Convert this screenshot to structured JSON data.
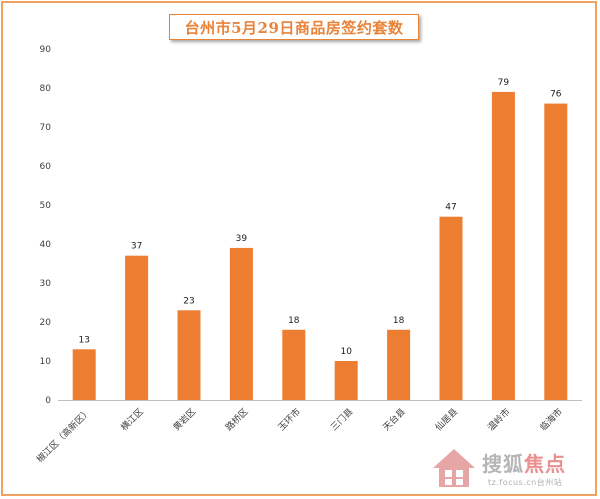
{
  "chart_data": {
    "type": "bar",
    "title": "台州市5月29日商品房签约套数",
    "categories": [
      "椒江区（高新区）",
      "横江区",
      "黄岩区",
      "路桥区",
      "玉环市",
      "三门县",
      "天台县",
      "仙居县",
      "温岭市",
      "临海市"
    ],
    "values": [
      13,
      37,
      23,
      39,
      18,
      10,
      18,
      47,
      79,
      76
    ],
    "ylim": [
      0,
      90
    ],
    "yticks": [
      0,
      10,
      20,
      30,
      40,
      50,
      60,
      70,
      80,
      90
    ],
    "xlabel": "",
    "ylabel": "",
    "grid": false,
    "data_labels": true,
    "bar_color": "#ed7d31"
  },
  "watermark": {
    "brand_prefix": "搜狐",
    "brand_accent": "焦点",
    "url": "tz.focus.cn台州站"
  },
  "colors": {
    "frame": "#f0a262",
    "title": "#e8833a",
    "bar": "#ed7d31"
  }
}
